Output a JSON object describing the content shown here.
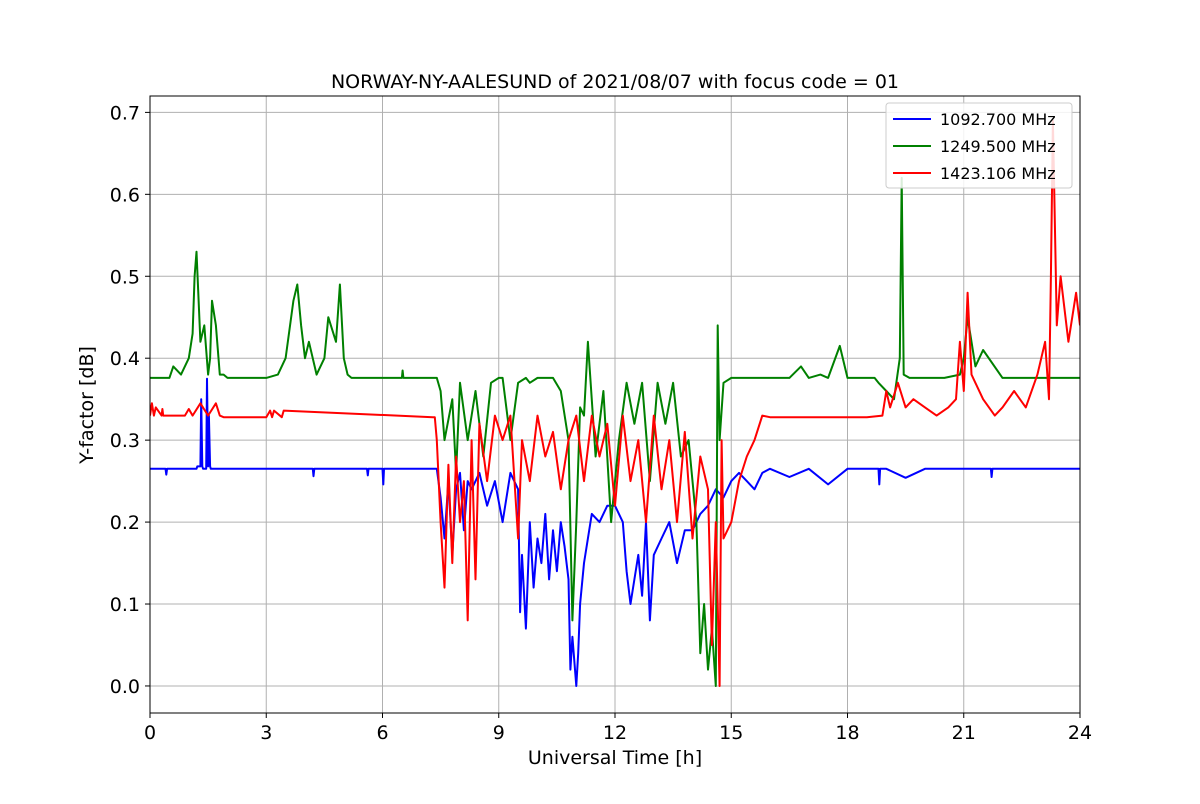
{
  "chart_data": {
    "type": "line",
    "title": "NORWAY-NY-AALESUND of 2021/08/07 with focus code = 01",
    "xlabel": "Universal Time [h]",
    "ylabel": "Y-factor [dB]",
    "xlim": [
      0,
      24
    ],
    "ylim": [
      -0.033,
      0.72
    ],
    "xticks": [
      0,
      3,
      6,
      9,
      12,
      15,
      18,
      21,
      24
    ],
    "xtick_labels": [
      "0",
      "3",
      "6",
      "9",
      "12",
      "15",
      "18",
      "21",
      "24"
    ],
    "yticks": [
      0.0,
      0.1,
      0.2,
      0.3,
      0.4,
      0.5,
      0.6,
      0.7
    ],
    "ytick_labels": [
      "0.0",
      "0.1",
      "0.2",
      "0.3",
      "0.4",
      "0.5",
      "0.6",
      "0.7"
    ],
    "grid": true,
    "legend_position": "top-right",
    "series": [
      {
        "name": "1092.700 MHz",
        "color": "#0000ff",
        "x": [
          0,
          0.4,
          0.42,
          0.44,
          1.2,
          1.22,
          1.3,
          1.32,
          1.35,
          1.37,
          1.45,
          1.47,
          1.5,
          1.52,
          1.55,
          1.57,
          1.6,
          4.2,
          4.22,
          4.24,
          5.6,
          5.62,
          5.64,
          6.0,
          6.02,
          6.04,
          7.4,
          7.5,
          7.6,
          7.7,
          7.8,
          7.9,
          8.0,
          8.1,
          8.2,
          8.3,
          8.5,
          8.7,
          8.9,
          9.1,
          9.3,
          9.5,
          9.55,
          9.6,
          9.7,
          9.8,
          9.9,
          10.0,
          10.1,
          10.2,
          10.3,
          10.4,
          10.5,
          10.6,
          10.7,
          10.8,
          10.85,
          10.9,
          11.0,
          11.05,
          11.1,
          11.2,
          11.4,
          11.6,
          11.8,
          12.0,
          12.2,
          12.3,
          12.4,
          12.5,
          12.6,
          12.7,
          12.8,
          12.9,
          13.0,
          13.2,
          13.4,
          13.6,
          13.8,
          14.0,
          14.2,
          14.4,
          14.6,
          14.8,
          15.0,
          15.2,
          15.4,
          15.6,
          15.8,
          16.0,
          16.5,
          17.0,
          17.5,
          18.0,
          18.5,
          18.8,
          18.82,
          18.84,
          19.0,
          19.5,
          20.0,
          20.5,
          21.0,
          21.5,
          21.7,
          21.72,
          21.74,
          22.0,
          22.5,
          23.0,
          23.5,
          24.0
        ],
        "y": [
          0.265,
          0.265,
          0.258,
          0.265,
          0.265,
          0.268,
          0.268,
          0.35,
          0.268,
          0.265,
          0.265,
          0.375,
          0.268,
          0.33,
          0.268,
          0.265,
          0.265,
          0.265,
          0.256,
          0.265,
          0.265,
          0.257,
          0.265,
          0.265,
          0.246,
          0.265,
          0.265,
          0.23,
          0.18,
          0.25,
          0.16,
          0.24,
          0.26,
          0.19,
          0.25,
          0.24,
          0.26,
          0.22,
          0.25,
          0.2,
          0.26,
          0.24,
          0.09,
          0.16,
          0.07,
          0.2,
          0.12,
          0.18,
          0.15,
          0.21,
          0.13,
          0.19,
          0.14,
          0.2,
          0.17,
          0.13,
          0.02,
          0.06,
          0.0,
          0.04,
          0.1,
          0.15,
          0.21,
          0.2,
          0.22,
          0.22,
          0.2,
          0.14,
          0.1,
          0.13,
          0.16,
          0.11,
          0.2,
          0.08,
          0.16,
          0.18,
          0.2,
          0.15,
          0.19,
          0.19,
          0.21,
          0.22,
          0.24,
          0.23,
          0.25,
          0.26,
          0.25,
          0.24,
          0.26,
          0.265,
          0.255,
          0.265,
          0.246,
          0.265,
          0.265,
          0.265,
          0.246,
          0.265,
          0.265,
          0.254,
          0.265,
          0.265,
          0.265,
          0.265,
          0.265,
          0.255,
          0.265,
          0.265,
          0.265,
          0.265,
          0.265,
          0.265
        ]
      },
      {
        "name": "1249.500 MHz",
        "color": "#008000",
        "x": [
          0,
          0.5,
          0.6,
          0.8,
          1.0,
          1.1,
          1.15,
          1.2,
          1.3,
          1.4,
          1.5,
          1.55,
          1.6,
          1.7,
          1.8,
          1.9,
          2.0,
          2.5,
          3.0,
          3.3,
          3.5,
          3.7,
          3.8,
          3.9,
          4.0,
          4.1,
          4.3,
          4.5,
          4.6,
          4.8,
          4.9,
          5.0,
          5.1,
          5.2,
          6.5,
          6.52,
          6.54,
          7.4,
          7.5,
          7.6,
          7.8,
          7.9,
          8.0,
          8.2,
          8.4,
          8.6,
          8.8,
          9.0,
          9.1,
          9.3,
          9.5,
          9.7,
          9.8,
          10.0,
          10.2,
          10.4,
          10.6,
          10.8,
          10.9,
          11.0,
          11.1,
          11.2,
          11.3,
          11.5,
          11.7,
          11.9,
          12.1,
          12.3,
          12.5,
          12.7,
          12.9,
          13.1,
          13.3,
          13.5,
          13.7,
          13.9,
          14.1,
          14.2,
          14.3,
          14.4,
          14.5,
          14.6,
          14.65,
          14.7,
          14.8,
          15.0,
          15.5,
          15.8,
          16.0,
          16.5,
          16.8,
          17.0,
          17.3,
          17.5,
          17.8,
          18.0,
          18.7,
          18.8,
          19.0,
          19.2,
          19.35,
          19.4,
          19.45,
          19.6,
          20.0,
          20.5,
          20.9,
          21.0,
          21.1,
          21.3,
          21.5,
          22.0,
          22.5,
          23.0,
          23.3,
          23.5,
          24.0
        ],
        "y": [
          0.376,
          0.376,
          0.39,
          0.38,
          0.4,
          0.43,
          0.5,
          0.53,
          0.42,
          0.44,
          0.38,
          0.4,
          0.47,
          0.44,
          0.38,
          0.38,
          0.376,
          0.376,
          0.376,
          0.38,
          0.4,
          0.47,
          0.49,
          0.44,
          0.4,
          0.42,
          0.38,
          0.4,
          0.45,
          0.42,
          0.49,
          0.4,
          0.38,
          0.376,
          0.376,
          0.385,
          0.376,
          0.376,
          0.36,
          0.3,
          0.35,
          0.26,
          0.37,
          0.3,
          0.36,
          0.28,
          0.37,
          0.376,
          0.376,
          0.3,
          0.37,
          0.376,
          0.37,
          0.376,
          0.376,
          0.376,
          0.36,
          0.3,
          0.08,
          0.2,
          0.34,
          0.33,
          0.42,
          0.28,
          0.36,
          0.2,
          0.3,
          0.37,
          0.32,
          0.37,
          0.25,
          0.37,
          0.32,
          0.37,
          0.28,
          0.3,
          0.2,
          0.04,
          0.1,
          0.02,
          0.07,
          0.0,
          0.44,
          0.3,
          0.37,
          0.376,
          0.376,
          0.376,
          0.376,
          0.376,
          0.39,
          0.376,
          0.38,
          0.376,
          0.415,
          0.376,
          0.376,
          0.37,
          0.36,
          0.35,
          0.4,
          0.62,
          0.38,
          0.376,
          0.376,
          0.376,
          0.38,
          0.4,
          0.45,
          0.39,
          0.41,
          0.376,
          0.376,
          0.376,
          0.376,
          0.376,
          0.376
        ]
      },
      {
        "name": "1423.106 MHz",
        "color": "#ff0000",
        "x": [
          0,
          0.05,
          0.1,
          0.15,
          0.3,
          0.32,
          0.34,
          0.9,
          1.0,
          1.1,
          1.3,
          1.5,
          1.7,
          1.8,
          1.9,
          3.0,
          3.1,
          3.15,
          3.2,
          3.4,
          3.45,
          7.3,
          7.35,
          7.4,
          7.5,
          7.6,
          7.7,
          7.8,
          7.9,
          8.0,
          8.1,
          8.2,
          8.3,
          8.4,
          8.5,
          8.7,
          8.9,
          9.1,
          9.3,
          9.5,
          9.6,
          9.8,
          10.0,
          10.2,
          10.4,
          10.6,
          10.8,
          11.0,
          11.2,
          11.4,
          11.6,
          11.8,
          12.0,
          12.2,
          12.4,
          12.6,
          12.8,
          13.0,
          13.2,
          13.4,
          13.6,
          13.8,
          14.0,
          14.2,
          14.4,
          14.5,
          14.6,
          14.7,
          14.75,
          14.8,
          15.0,
          15.2,
          15.4,
          15.6,
          15.8,
          16.0,
          16.5,
          17.0,
          17.5,
          18.0,
          18.5,
          18.9,
          19.0,
          19.1,
          19.3,
          19.5,
          19.7,
          20.0,
          20.3,
          20.6,
          20.8,
          20.9,
          21.0,
          21.1,
          21.2,
          21.5,
          21.8,
          22.0,
          22.3,
          22.6,
          22.9,
          23.1,
          23.2,
          23.25,
          23.3,
          23.4,
          23.5,
          23.7,
          23.9,
          24.0
        ],
        "y": [
          0.33,
          0.345,
          0.33,
          0.34,
          0.33,
          0.338,
          0.33,
          0.33,
          0.338,
          0.33,
          0.345,
          0.33,
          0.345,
          0.33,
          0.328,
          0.328,
          0.336,
          0.328,
          0.336,
          0.328,
          0.336,
          0.328,
          0.328,
          0.3,
          0.2,
          0.12,
          0.27,
          0.15,
          0.28,
          0.2,
          0.25,
          0.08,
          0.3,
          0.13,
          0.32,
          0.25,
          0.33,
          0.3,
          0.33,
          0.18,
          0.3,
          0.25,
          0.33,
          0.28,
          0.31,
          0.24,
          0.3,
          0.33,
          0.25,
          0.33,
          0.28,
          0.32,
          0.22,
          0.33,
          0.25,
          0.3,
          0.2,
          0.33,
          0.24,
          0.3,
          0.2,
          0.31,
          0.18,
          0.28,
          0.24,
          0.05,
          0.2,
          0.0,
          0.3,
          0.18,
          0.2,
          0.25,
          0.28,
          0.3,
          0.33,
          0.328,
          0.328,
          0.328,
          0.328,
          0.328,
          0.328,
          0.33,
          0.36,
          0.34,
          0.37,
          0.34,
          0.35,
          0.34,
          0.33,
          0.34,
          0.35,
          0.42,
          0.36,
          0.48,
          0.38,
          0.35,
          0.33,
          0.34,
          0.36,
          0.34,
          0.38,
          0.42,
          0.35,
          0.5,
          0.69,
          0.44,
          0.5,
          0.42,
          0.48,
          0.44
        ]
      }
    ]
  }
}
